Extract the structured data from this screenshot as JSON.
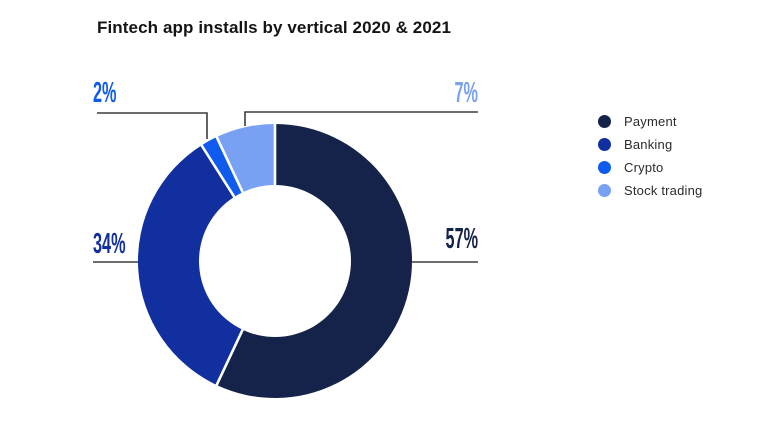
{
  "title": "Fintech app installs by vertical 2020 & 2021",
  "chart_data": {
    "type": "pie",
    "subtype": "donut",
    "title": "Fintech app installs by vertical 2020 & 2021",
    "categories": [
      "Payment",
      "Banking",
      "Crypto",
      "Stock trading"
    ],
    "series": [
      {
        "name": "Payment",
        "value": 57,
        "label": "57%",
        "color": "#15234A"
      },
      {
        "name": "Banking",
        "value": 34,
        "label": "34%",
        "color": "#112F9E"
      },
      {
        "name": "Crypto",
        "value": 2,
        "label": "2%",
        "color": "#0E5BEE"
      },
      {
        "name": "Stock trading",
        "value": 7,
        "label": "7%",
        "color": "#79A1F3"
      }
    ],
    "start_angle_deg": 0,
    "direction": "clockwise",
    "legend_position": "right",
    "background": "#FFFFFF",
    "leader_line_color": "#3C3C3C",
    "separator_color": "#FFFFFF"
  }
}
